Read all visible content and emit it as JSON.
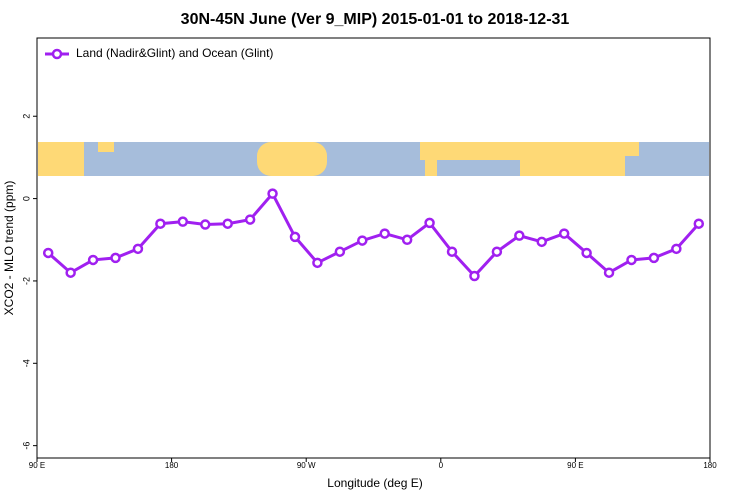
{
  "chart_data": {
    "type": "line",
    "title": "30N-45N June (Ver 9_MIP)   2015-01-01 to 2018-12-31",
    "x_label": "Longitude (deg E)",
    "y_label": "XCO2 - MLO trend (ppm)",
    "x": [
      97.5,
      112.5,
      127.5,
      142.5,
      157.5,
      172.5,
      187.5,
      202.5,
      217.5,
      232.5,
      247.5,
      262.5,
      277.5,
      292.5,
      307.5,
      322.5,
      337.5,
      352.5,
      367.5,
      382.5,
      397.5,
      412.5,
      427.5,
      442.5,
      457.5,
      472.5,
      487.5,
      502.5,
      517.5,
      532.5
    ],
    "series": [
      {
        "name": "Land (Nadir&Glint) and Ocean (Glint)",
        "color": "#a020f0",
        "values": [
          -1.32,
          -1.8,
          -1.49,
          -1.44,
          -1.22,
          -0.61,
          -0.56,
          -0.63,
          -0.61,
          -0.51,
          0.12,
          -0.93,
          -1.56,
          -1.29,
          -1.02,
          -0.85,
          -1.0,
          -0.59,
          -1.29,
          -1.88,
          -1.29,
          -0.9,
          -1.05,
          -0.85,
          -1.32,
          -1.8,
          -1.49,
          -1.44,
          -1.22,
          -0.61
        ]
      }
    ],
    "xlim": [
      90,
      540
    ],
    "xticks": [
      {
        "value": 90,
        "label": "90 E"
      },
      180,
      {
        "value": 270,
        "label": "90 W"
      },
      {
        "value": 360,
        "label": "0"
      },
      {
        "value": 450,
        "label": "90 E"
      },
      {
        "value": 540,
        "label": "180"
      }
    ],
    "ylim": [
      -6.3,
      3.9
    ],
    "yticks": [
      -6,
      -4,
      -2,
      0,
      2
    ],
    "legend": "top-left"
  }
}
